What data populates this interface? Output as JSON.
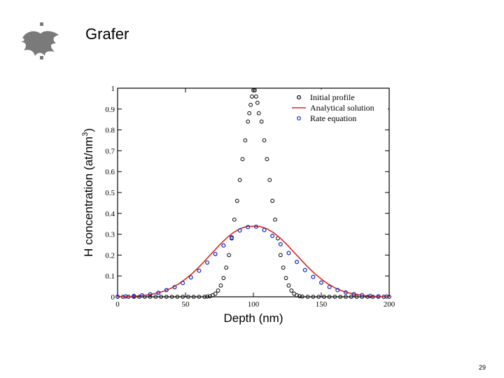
{
  "slide": {
    "title": "Grafer",
    "page_number": "29"
  },
  "logo": {
    "icon": "university-flame-logo-icon",
    "color": "#7a7a7a"
  },
  "chart_data": {
    "type": "scatter",
    "xlabel": "Depth (nm)",
    "ylabel": "H concentration (at/nm",
    "ylabel_superscript": "3",
    "ylabel_close": ")",
    "xlim": [
      0,
      200
    ],
    "ylim": [
      0,
      1
    ],
    "xticks": [
      0,
      50,
      100,
      150,
      200
    ],
    "xtick_labels": [
      "0",
      "50",
      "100",
      "150",
      "200"
    ],
    "yticks": [
      0,
      0.1,
      0.2,
      0.3,
      0.4,
      0.5,
      0.6,
      0.7,
      0.8,
      0.9,
      1
    ],
    "ytick_labels": [
      "0",
      "0.1",
      "0.2",
      "0.3",
      "0.4",
      "0.5",
      "0.6",
      "0.7",
      "0.8",
      "0.9",
      "1"
    ],
    "grid": false,
    "legend_position": "top-right",
    "series": [
      {
        "name": "Initial profile",
        "style": "open-circle",
        "color": "#000000",
        "points": [
          [
            0,
            0
          ],
          [
            4,
            0
          ],
          [
            8,
            0
          ],
          [
            12,
            0
          ],
          [
            16,
            0
          ],
          [
            20,
            0
          ],
          [
            24,
            0
          ],
          [
            28,
            0
          ],
          [
            32,
            0
          ],
          [
            36,
            0
          ],
          [
            40,
            0
          ],
          [
            44,
            0
          ],
          [
            48,
            0
          ],
          [
            52,
            0
          ],
          [
            56,
            0
          ],
          [
            60,
            0
          ],
          [
            64,
            0
          ],
          [
            66,
            0.001
          ],
          [
            68,
            0.003
          ],
          [
            70,
            0.007
          ],
          [
            72,
            0.015
          ],
          [
            74,
            0.03
          ],
          [
            76,
            0.054
          ],
          [
            78,
            0.09
          ],
          [
            80,
            0.14
          ],
          [
            82,
            0.2
          ],
          [
            84,
            0.28
          ],
          [
            86,
            0.37
          ],
          [
            88,
            0.46
          ],
          [
            90,
            0.56
          ],
          [
            92,
            0.66
          ],
          [
            94,
            0.75
          ],
          [
            96,
            0.84
          ],
          [
            97,
            0.88
          ],
          [
            98,
            0.92
          ],
          [
            99,
            0.96
          ],
          [
            100,
            0.99
          ],
          [
            101,
            0.99
          ],
          [
            102,
            0.96
          ],
          [
            103,
            0.93
          ],
          [
            104,
            0.88
          ],
          [
            106,
            0.84
          ],
          [
            108,
            0.75
          ],
          [
            110,
            0.66
          ],
          [
            112,
            0.56
          ],
          [
            114,
            0.46
          ],
          [
            116,
            0.37
          ],
          [
            118,
            0.28
          ],
          [
            120,
            0.2
          ],
          [
            122,
            0.14
          ],
          [
            124,
            0.09
          ],
          [
            126,
            0.054
          ],
          [
            128,
            0.03
          ],
          [
            130,
            0.015
          ],
          [
            132,
            0.007
          ],
          [
            134,
            0.003
          ],
          [
            136,
            0.001
          ],
          [
            140,
            0
          ],
          [
            144,
            0
          ],
          [
            148,
            0
          ],
          [
            152,
            0
          ],
          [
            156,
            0
          ],
          [
            160,
            0
          ],
          [
            164,
            0
          ],
          [
            168,
            0
          ],
          [
            172,
            0
          ],
          [
            176,
            0
          ],
          [
            180,
            0
          ],
          [
            184,
            0
          ],
          [
            188,
            0
          ],
          [
            192,
            0
          ],
          [
            196,
            0
          ],
          [
            200,
            0
          ]
        ]
      },
      {
        "name": "Analytical solution",
        "style": "line",
        "color": "#d42a1e",
        "x": [
          0,
          5,
          10,
          15,
          20,
          25,
          30,
          35,
          40,
          45,
          50,
          55,
          60,
          65,
          70,
          75,
          80,
          85,
          90,
          95,
          100,
          105,
          110,
          115,
          120,
          125,
          130,
          135,
          140,
          145,
          150,
          155,
          160,
          165,
          170,
          175,
          180,
          185,
          190,
          195,
          200
        ],
        "y": [
          0.001,
          0.001,
          0.002,
          0.004,
          0.007,
          0.012,
          0.019,
          0.029,
          0.043,
          0.062,
          0.085,
          0.112,
          0.143,
          0.178,
          0.213,
          0.248,
          0.28,
          0.307,
          0.326,
          0.337,
          0.338,
          0.337,
          0.326,
          0.307,
          0.28,
          0.248,
          0.213,
          0.178,
          0.143,
          0.112,
          0.085,
          0.062,
          0.043,
          0.029,
          0.019,
          0.012,
          0.007,
          0.004,
          0.002,
          0.001,
          0.001
        ]
      },
      {
        "name": "Rate equation",
        "style": "blue-circle",
        "color": "#2030c0",
        "x": [
          0,
          6,
          12,
          18,
          24,
          30,
          36,
          42,
          48,
          54,
          60,
          66,
          72,
          78,
          84,
          90,
          96,
          102,
          108,
          114,
          120,
          126,
          132,
          138,
          144,
          150,
          156,
          162,
          168,
          174,
          180,
          186,
          192,
          198
        ],
        "y": [
          0.001,
          0.002,
          0.004,
          0.007,
          0.012,
          0.019,
          0.032,
          0.046,
          0.066,
          0.093,
          0.125,
          0.164,
          0.205,
          0.246,
          0.285,
          0.318,
          0.334,
          0.336,
          0.32,
          0.292,
          0.252,
          0.21,
          0.167,
          0.128,
          0.095,
          0.068,
          0.047,
          0.032,
          0.021,
          0.013,
          0.008,
          0.004,
          0.002,
          0.001
        ]
      }
    ]
  }
}
